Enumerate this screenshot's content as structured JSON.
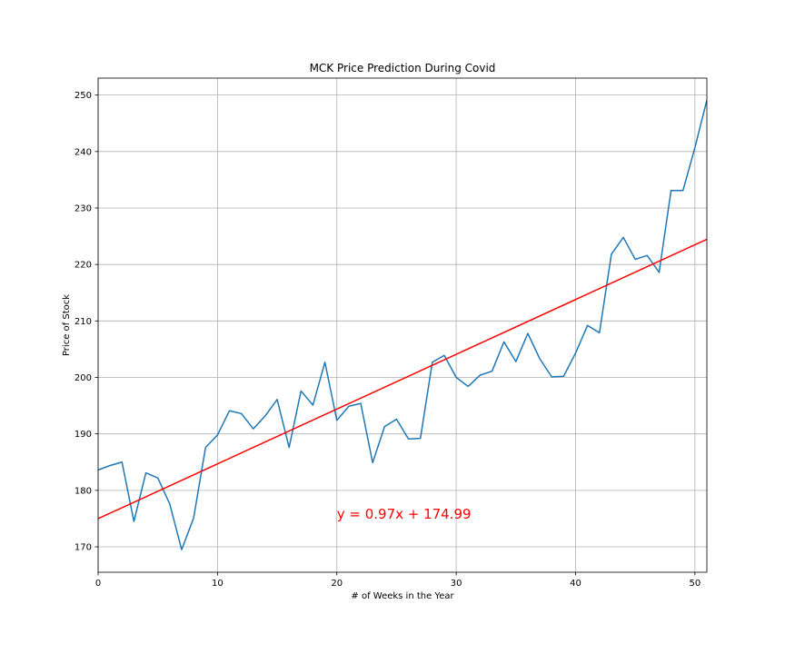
{
  "chart_data": {
    "type": "line",
    "title": "MCK Price Prediction During Covid",
    "xlabel": "# of Weeks in the Year",
    "ylabel": "Price of Stock",
    "xlim": [
      0,
      51
    ],
    "ylim": [
      165.5,
      253
    ],
    "xticks": [
      0,
      10,
      20,
      30,
      40,
      50
    ],
    "yticks": [
      170,
      180,
      190,
      200,
      210,
      220,
      230,
      240,
      250
    ],
    "grid": true,
    "series": [
      {
        "color": "#1f77b4",
        "x": [
          0,
          1,
          2,
          3,
          4,
          5,
          6,
          7,
          8,
          9,
          10,
          11,
          12,
          13,
          14,
          15,
          16,
          17,
          18,
          19,
          20,
          21,
          22,
          23,
          24,
          25,
          26,
          27,
          28,
          29,
          30,
          31,
          32,
          33,
          34,
          35,
          36,
          37,
          38,
          39,
          40,
          41,
          42,
          43,
          44,
          45,
          46,
          47,
          48,
          49,
          50,
          51
        ],
        "y": [
          183.6,
          184.4,
          185.0,
          174.5,
          183.1,
          182.2,
          177.6,
          169.5,
          175.1,
          187.6,
          189.8,
          194.1,
          193.6,
          190.9,
          193.2,
          196.1,
          187.6,
          197.6,
          195.1,
          202.7,
          192.4,
          194.9,
          195.4,
          184.9,
          191.3,
          192.6,
          189.1,
          189.2,
          202.7,
          203.9,
          200.0,
          198.4,
          200.4,
          201.1,
          206.3,
          202.8,
          207.8,
          203.3,
          200.1,
          200.2,
          204.3,
          209.2,
          207.9,
          221.8,
          224.8,
          220.9,
          221.6,
          218.6,
          233.1,
          233.1,
          240.7,
          249.1
        ]
      },
      {
        "color": "#ff0000",
        "slope": 0.97,
        "intercept": 174.99
      }
    ],
    "annotation": {
      "text": "y = 0.97x + 174.99",
      "x": 20,
      "y": 174.99,
      "color": "#ff0000"
    }
  }
}
